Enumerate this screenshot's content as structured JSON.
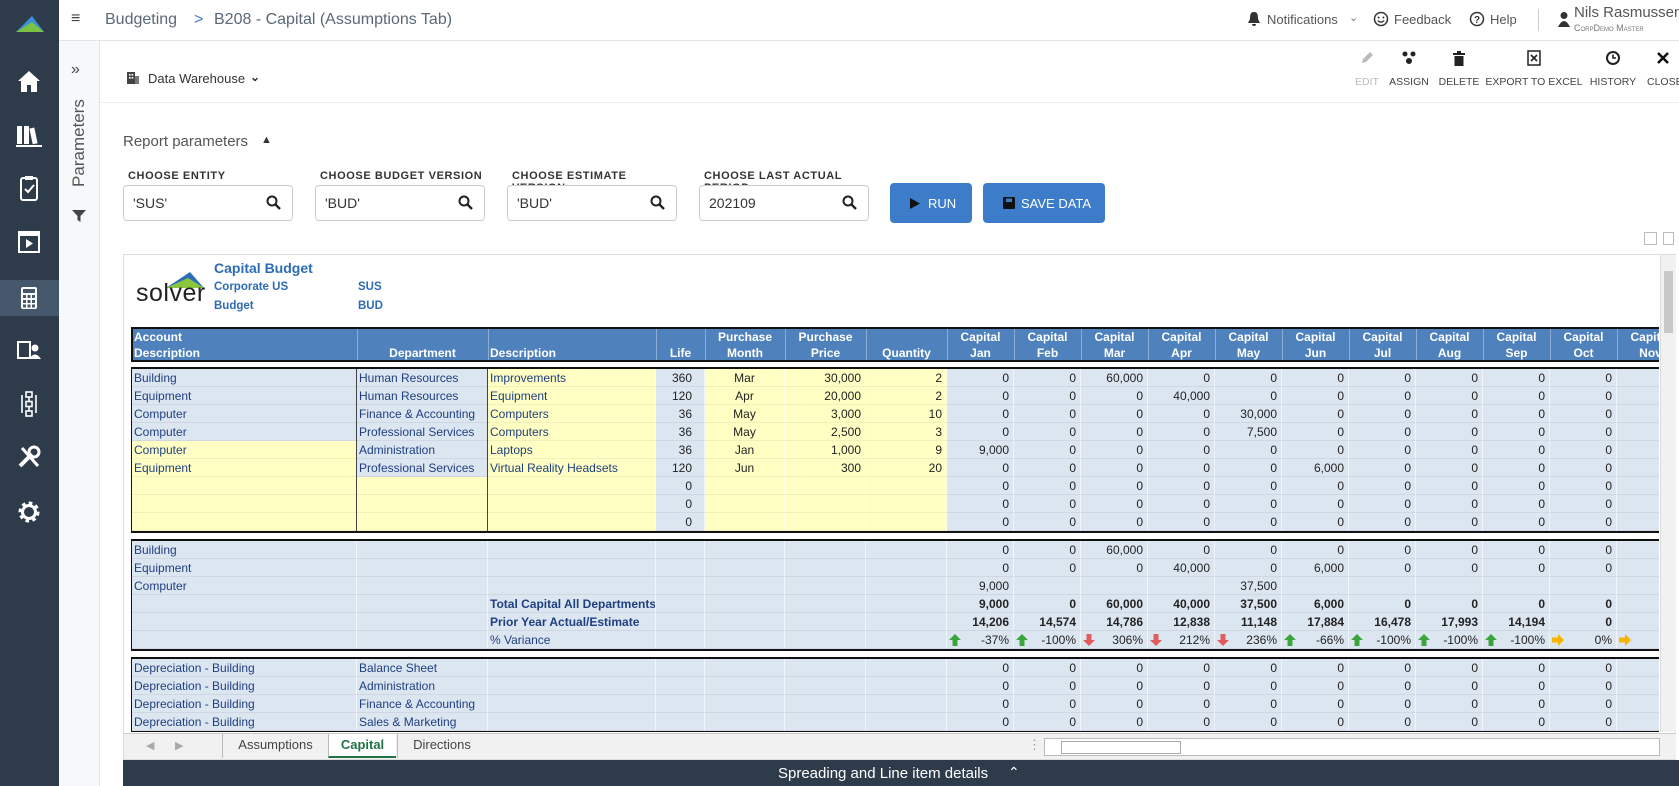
{
  "header": {
    "app": "Budgeting",
    "separator": ">",
    "page": "B208 - Capital (Assumptions Tab)",
    "links": [
      "Notifications",
      "Feedback",
      "Help"
    ],
    "user": "Nils Rasmussen",
    "company": "CorpDemo Master"
  },
  "sidebar": {
    "title": "Parameters"
  },
  "toolbar": {
    "source": "Data Warehouse",
    "actions": [
      "EDIT",
      "ASSIGN",
      "DELETE",
      "EXPORT TO EXCEL",
      "HISTORY",
      "CLOSE"
    ]
  },
  "parameters": {
    "title": "Report parameters",
    "fields": [
      {
        "label": "CHOOSE ENTITY",
        "value": "'SUS'"
      },
      {
        "label": "CHOOSE BUDGET VERSION",
        "value": "'BUD'"
      },
      {
        "label": "CHOOSE ESTIMATE VERSION",
        "value": "'BUD'"
      },
      {
        "label": "CHOOSE LAST ACTUAL PERIOD",
        "value": "202109"
      }
    ],
    "buttons": [
      "RUN",
      "SAVE DATA"
    ]
  },
  "report": {
    "logo": "solver",
    "title": "Capital Budget",
    "info": [
      [
        "Corporate US",
        "SUS"
      ],
      [
        "Budget",
        "BUD"
      ]
    ],
    "columns": [
      [
        "Account",
        "Description"
      ],
      [
        "Department"
      ],
      [
        "Description"
      ],
      [
        "Life"
      ],
      [
        "Purchase",
        "Month"
      ],
      [
        "Purchase",
        "Price"
      ],
      [
        "Quantity"
      ],
      [
        "Capital",
        "Jan"
      ],
      [
        "Capital",
        "Feb"
      ],
      [
        "Capital",
        "Mar"
      ],
      [
        "Capital",
        "Apr"
      ],
      [
        "Capital",
        "May"
      ],
      [
        "Capital",
        "Jun"
      ],
      [
        "Capital",
        "Jul"
      ],
      [
        "Capital",
        "Aug"
      ],
      [
        "Capital",
        "Sep"
      ],
      [
        "Capital",
        "Oct"
      ],
      [
        "Capital",
        "Nov"
      ]
    ],
    "input_rows": [
      [
        "Building",
        "Human Resources",
        "Improvements",
        "360",
        "Mar",
        "30,000",
        "2",
        "0",
        "0",
        "60,000",
        "0",
        "0",
        "0",
        "0",
        "0",
        "0",
        "0"
      ],
      [
        "Equipment",
        "Human Resources",
        "Equipment",
        "120",
        "Apr",
        "20,000",
        "2",
        "0",
        "0",
        "0",
        "40,000",
        "0",
        "0",
        "0",
        "0",
        "0",
        "0"
      ],
      [
        "Computer",
        "Finance & Accounting",
        "Computers",
        "36",
        "May",
        "3,000",
        "10",
        "0",
        "0",
        "0",
        "0",
        "30,000",
        "0",
        "0",
        "0",
        "0",
        "0"
      ],
      [
        "Computer",
        "Professional Services",
        "Computers",
        "36",
        "May",
        "2,500",
        "3",
        "0",
        "0",
        "0",
        "0",
        "7,500",
        "0",
        "0",
        "0",
        "0",
        "0"
      ],
      [
        "Computer",
        "Administration",
        "Laptops",
        "36",
        "Jan",
        "1,000",
        "9",
        "9,000",
        "0",
        "0",
        "0",
        "0",
        "0",
        "0",
        "0",
        "0",
        "0"
      ],
      [
        "Equipment",
        "Professional Services",
        "Virtual Reality Headsets",
        "120",
        "Jun",
        "300",
        "20",
        "0",
        "0",
        "0",
        "0",
        "0",
        "6,000",
        "0",
        "0",
        "0",
        "0"
      ],
      [
        null,
        null,
        null,
        "0",
        null,
        null,
        null,
        "0",
        "0",
        "0",
        "0",
        "0",
        "0",
        "0",
        "0",
        "0",
        "0"
      ],
      [
        null,
        null,
        null,
        "0",
        null,
        null,
        null,
        "0",
        "0",
        "0",
        "0",
        "0",
        "0",
        "0",
        "0",
        "0",
        "0"
      ],
      [
        null,
        null,
        null,
        "0",
        null,
        null,
        null,
        "0",
        "0",
        "0",
        "0",
        "0",
        "0",
        "0",
        "0",
        "0",
        "0"
      ]
    ],
    "summary_rows": [
      [
        "Building",
        null,
        null,
        null,
        null,
        null,
        null,
        "0",
        "0",
        "60,000",
        "0",
        "0",
        "0",
        "0",
        "0",
        "0",
        "0"
      ],
      [
        "Equipment",
        null,
        null,
        null,
        null,
        null,
        null,
        "0",
        "0",
        "0",
        "40,000",
        "0",
        "6,000",
        "0",
        "0",
        "0",
        "0"
      ],
      [
        "Computer",
        null,
        null,
        null,
        null,
        null,
        null,
        "9,000",
        null,
        null,
        null,
        "37,500",
        null,
        null,
        null,
        null,
        null
      ],
      [
        null,
        null,
        "Total Capital All Departments",
        null,
        null,
        null,
        null,
        "9,000",
        "0",
        "60,000",
        "40,000",
        "37,500",
        "6,000",
        "0",
        "0",
        "0",
        "0"
      ],
      [
        null,
        null,
        "Prior Year Actual/Estimate",
        null,
        null,
        null,
        null,
        "14,206",
        "14,574",
        "14,786",
        "12,838",
        "11,148",
        "17,884",
        "16,478",
        "17,993",
        "14,194",
        "0"
      ],
      [
        null,
        null,
        "% Variance",
        null,
        null,
        null,
        null,
        "-37%",
        "-100%",
        "306%",
        "212%",
        "236%",
        "-66%",
        "-100%",
        "-100%",
        "-100%",
        "0%"
      ]
    ],
    "variance_icons": [
      "up",
      "up",
      "down",
      "down",
      "down",
      "up",
      "up",
      "up",
      "up",
      "right",
      "right"
    ],
    "depreciation_rows": [
      [
        "Depreciation - Building",
        "Balance Sheet",
        null,
        null,
        null,
        null,
        null,
        "0",
        "0",
        "0",
        "0",
        "0",
        "0",
        "0",
        "0",
        "0",
        "0"
      ],
      [
        "Depreciation - Building",
        "Administration",
        null,
        null,
        null,
        null,
        null,
        "0",
        "0",
        "0",
        "0",
        "0",
        "0",
        "0",
        "0",
        "0",
        "0"
      ],
      [
        "Depreciation - Building",
        "Finance & Accounting",
        null,
        null,
        null,
        null,
        null,
        "0",
        "0",
        "0",
        "0",
        "0",
        "0",
        "0",
        "0",
        "0",
        "0"
      ],
      [
        "Depreciation - Building",
        "Sales & Marketing",
        null,
        null,
        null,
        null,
        null,
        "0",
        "0",
        "0",
        "0",
        "0",
        "0",
        "0",
        "0",
        "0",
        "0"
      ]
    ]
  },
  "tabs": [
    "Assumptions",
    "Capital",
    "Directions"
  ],
  "active_tab": 1,
  "footer": {
    "title": "Spreading and Line item details"
  }
}
